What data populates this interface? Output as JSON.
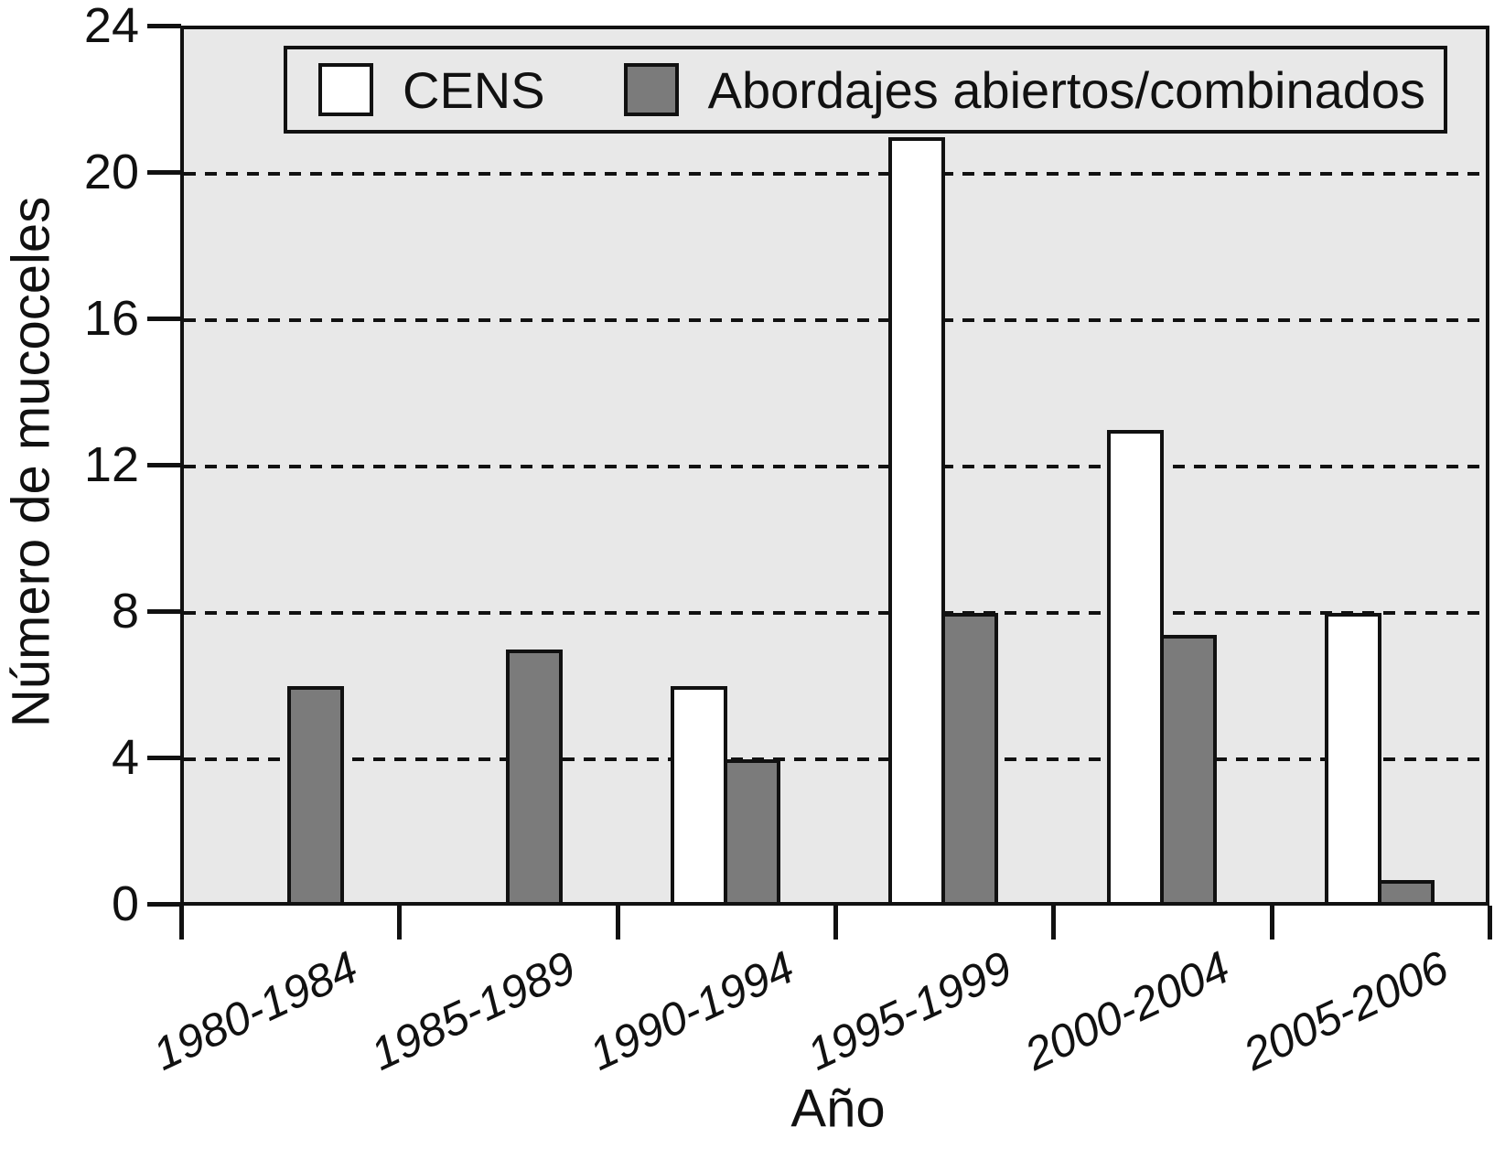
{
  "figure": {
    "background": "#ffffff",
    "plot_background": "#e8e8e8",
    "axis_color": "#111111"
  },
  "chart_data": {
    "type": "bar",
    "title": "",
    "categories": [
      "1980-1984",
      "1985-1989",
      "1990-1994",
      "1995-1999",
      "2000-2004",
      "2005-2006"
    ],
    "series": [
      {
        "name": "CENS",
        "fill": "#ffffff",
        "values": [
          0,
          0,
          6,
          21,
          13,
          8
        ]
      },
      {
        "name": "Abordajes abiertos/combinados",
        "fill": "#7b7b7b",
        "values": [
          6,
          7,
          4,
          8,
          7.4,
          0.7
        ]
      }
    ],
    "xlabel": "Año",
    "ylabel": "Número de mucoceles",
    "ylim": [
      0,
      24
    ],
    "yticks": [
      0,
      4,
      8,
      12,
      16,
      20,
      24
    ],
    "gridline_values": [
      4,
      8,
      12,
      16,
      20
    ],
    "gridline_style": "dashed",
    "legend_position": "top"
  }
}
